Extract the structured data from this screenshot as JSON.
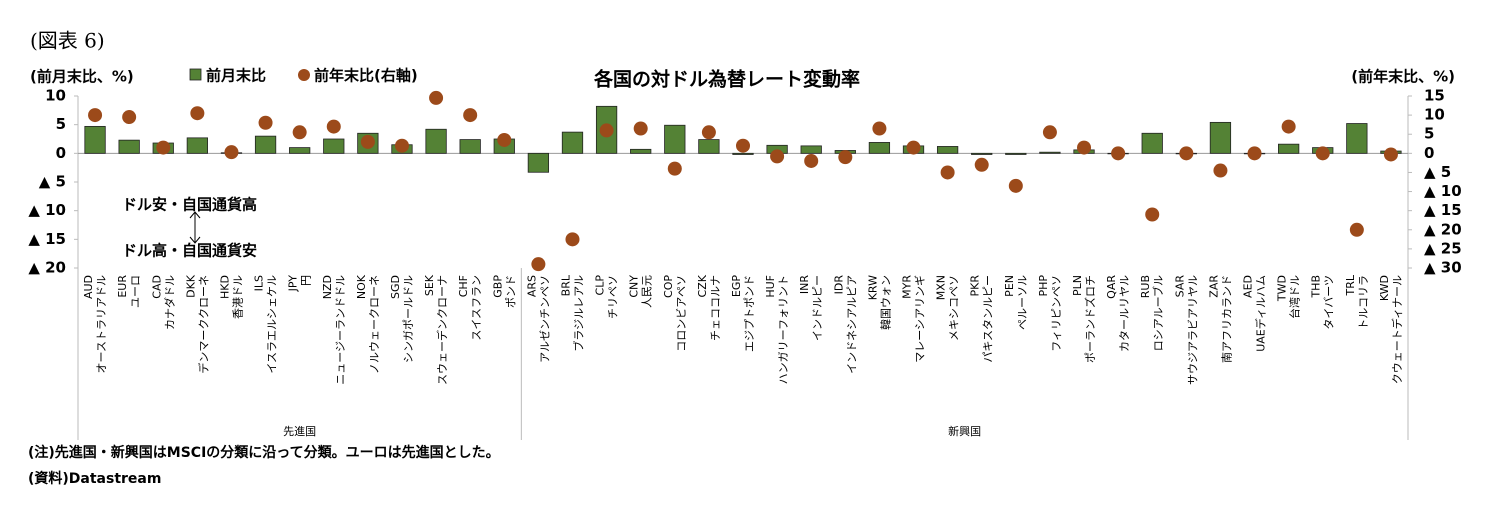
{
  "chart_data": {
    "type": "bar",
    "header": "(図表 6)",
    "title": "各国の対ドル為替レート変動率",
    "y_label": "(前月末比、%)",
    "y2_label": "(前年末比、%)",
    "annotations": [
      "ドル安・自国通貨高",
      "ドル高・自国通貨安"
    ],
    "notes": [
      "(注)先進国・新興国はMSCIの分類に沿って分類。ユーロは先進国とした。",
      "(資料)Datastream"
    ],
    "categories": [
      "AUD",
      "EUR",
      "CAD",
      "DKK",
      "HKD",
      "ILS",
      "JPY",
      "NZD",
      "NOK",
      "SGD",
      "SEK",
      "CHF",
      "GBP",
      "ARS",
      "BRL",
      "CLP",
      "CNY",
      "COP",
      "CZK",
      "EGP",
      "HUF",
      "INR",
      "IDR",
      "KRW",
      "MYR",
      "MXN",
      "PKR",
      "PEN",
      "PHP",
      "PLN",
      "QAR",
      "RUB",
      "SAR",
      "ZAR",
      "AED",
      "TWD",
      "THB",
      "TRL",
      "KWD"
    ],
    "category_names": [
      "オーストラリアドル",
      "ユーロ",
      "カナダドル",
      "デンマーククローネ",
      "香港ドル",
      "イスラエルシェケル",
      "円",
      "ニュージーランドドル",
      "ノルウェークローネ",
      "シンガポールドル",
      "スウェーデンクローナ",
      "スイスフラン",
      "ポンド",
      "アルゼンチンペソ",
      "ブラジルレアル",
      "チリペソ",
      "人民元",
      "コロンビアペソ",
      "チェココルナ",
      "エジプトポンド",
      "ハンガリーフォリント",
      "インドルピー",
      "インドネシアルピア",
      "韓国ウォン",
      "マレーシアリンギ",
      "メキシコペソ",
      "パキスタンルピー",
      "ペルーソル",
      "フィリピンペソ",
      "ポーランドズロチ",
      "カタールリヤル",
      "ロシアルーブル",
      "サウジアラビアリヤル",
      "南アフリカランド",
      "UAEディルハム",
      "台湾ドル",
      "タイバーツ",
      "トルコリラ",
      "クウェートディナール"
    ],
    "groups": [
      {
        "name": "先進国",
        "count": 13
      },
      {
        "name": "新興国",
        "count": 26
      }
    ],
    "series": [
      {
        "name": "前月末比",
        "color": "#548235",
        "values": [
          4.7,
          2.3,
          1.8,
          2.7,
          0.1,
          3.0,
          1.0,
          2.5,
          3.5,
          1.5,
          4.2,
          2.4,
          2.5,
          -3.3,
          3.7,
          8.2,
          0.7,
          4.9,
          2.4,
          -0.2,
          1.4,
          1.3,
          0.5,
          1.9,
          1.3,
          1.2,
          -0.2,
          -0.2,
          0.2,
          0.6,
          0.0,
          3.5,
          0.0,
          5.4,
          0.0,
          1.6,
          1.0,
          5.2,
          0.4
        ]
      },
      {
        "name": "前年末比(右軸)",
        "color": "#9c4a1a",
        "axis": "y2",
        "values": [
          10,
          9.5,
          1.5,
          10.5,
          0.3,
          8,
          5.5,
          7,
          3,
          2,
          14.5,
          10,
          3.5,
          -29,
          -22.5,
          6,
          6.5,
          -4,
          5.5,
          2,
          -0.8,
          -2,
          -1,
          6.5,
          1.5,
          -5,
          -3,
          -8.5,
          5.5,
          1.5,
          0,
          -16,
          0,
          -4.5,
          0,
          7,
          0,
          -20,
          -0.3
        ]
      }
    ],
    "ylim": [
      -20,
      10
    ],
    "yticks": [
      10,
      5,
      0,
      {
        "value": -5,
        "label": "▲ 5"
      },
      {
        "value": -10,
        "label": "▲ 10"
      },
      {
        "value": -15,
        "label": "▲ 15"
      },
      {
        "value": -20,
        "label": "▲ 20"
      }
    ],
    "y2lim": [
      -30,
      15
    ],
    "y2ticks": [
      15,
      10,
      5,
      0,
      {
        "value": -5,
        "label": "▲ 5"
      },
      {
        "value": -10,
        "label": "▲ 10"
      },
      {
        "value": -15,
        "label": "▲ 15"
      },
      {
        "value": -20,
        "label": "▲ 20"
      },
      {
        "value": -25,
        "label": "▲ 25"
      },
      {
        "value": -30,
        "label": "▲ 30"
      }
    ],
    "grid": false
  }
}
